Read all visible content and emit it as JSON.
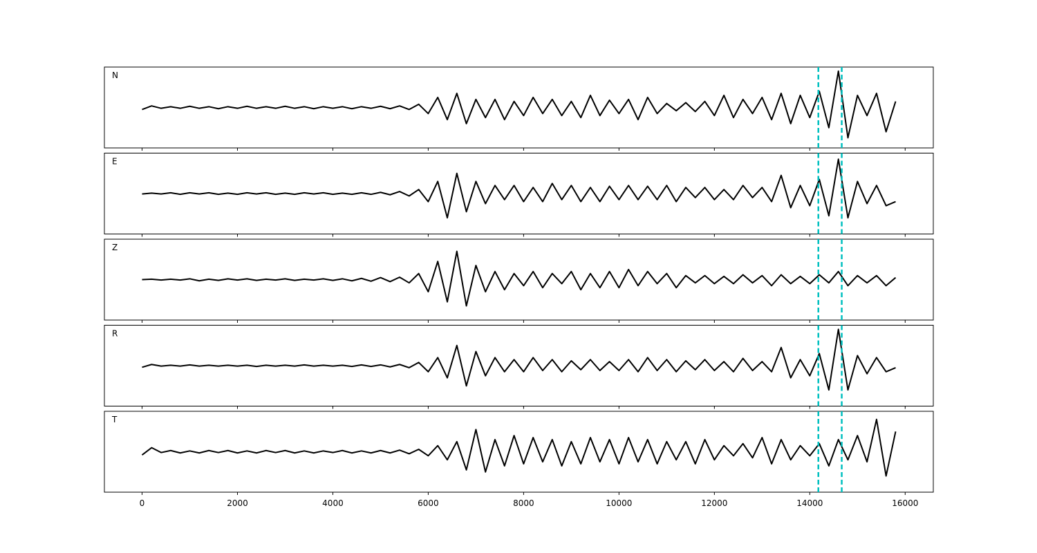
{
  "chart_data": {
    "type": "line",
    "layout": "stacked",
    "x": [
      0,
      200,
      400,
      600,
      800,
      1000,
      1200,
      1400,
      1600,
      1800,
      2000,
      2200,
      2400,
      2600,
      2800,
      3000,
      3200,
      3400,
      3600,
      3800,
      4000,
      4200,
      4400,
      4600,
      4800,
      5000,
      5200,
      5400,
      5600,
      5800,
      6000,
      6200,
      6400,
      6600,
      6800,
      7000,
      7200,
      7400,
      7600,
      7800,
      8000,
      8200,
      8400,
      8600,
      8800,
      9000,
      9200,
      9400,
      9600,
      9800,
      10000,
      10200,
      10400,
      10600,
      10800,
      11000,
      11200,
      11400,
      11600,
      11800,
      12000,
      12200,
      12400,
      12600,
      12800,
      13000,
      13200,
      13400,
      13600,
      13800,
      14000,
      14200,
      14400,
      14600,
      14800,
      15000,
      15200,
      15400,
      15600,
      15800
    ],
    "xlim": [
      -790,
      16590
    ],
    "xticks": [
      0,
      2000,
      4000,
      6000,
      8000,
      10000,
      12000,
      14000,
      16000
    ],
    "ylim": [
      -1,
      1
    ],
    "vlines": [
      14180,
      14670
    ],
    "vline_color": "#00bfbf",
    "series": [
      {
        "name": "N",
        "color": "#000000",
        "values": [
          -0.05,
          0.04,
          -0.02,
          0.02,
          -0.02,
          0.03,
          -0.02,
          0.02,
          -0.03,
          0.02,
          -0.02,
          0.03,
          -0.02,
          0.02,
          -0.02,
          0.03,
          -0.02,
          0.02,
          -0.03,
          0.02,
          -0.02,
          0.02,
          -0.03,
          0.02,
          -0.02,
          0.03,
          -0.03,
          0.04,
          -0.05,
          0.08,
          -0.15,
          0.25,
          -0.3,
          0.35,
          -0.4,
          0.2,
          -0.25,
          0.2,
          -0.3,
          0.15,
          -0.2,
          0.25,
          -0.15,
          0.2,
          -0.2,
          0.15,
          -0.25,
          0.3,
          -0.2,
          0.18,
          -0.15,
          0.2,
          -0.3,
          0.25,
          -0.15,
          0.1,
          -0.08,
          0.12,
          -0.1,
          0.15,
          -0.2,
          0.3,
          -0.25,
          0.2,
          -0.15,
          0.25,
          -0.3,
          0.35,
          -0.4,
          0.3,
          -0.25,
          0.4,
          -0.5,
          0.9,
          -0.75,
          0.3,
          -0.2,
          0.35,
          -0.6,
          0.15
        ]
      },
      {
        "name": "E",
        "color": "#000000",
        "values": [
          -0.01,
          0.01,
          -0.01,
          0.02,
          -0.02,
          0.02,
          -0.01,
          0.02,
          -0.02,
          0.01,
          -0.02,
          0.02,
          -0.01,
          0.02,
          -0.02,
          0.01,
          -0.02,
          0.02,
          -0.01,
          0.02,
          -0.02,
          0.01,
          -0.02,
          0.02,
          -0.02,
          0.03,
          -0.03,
          0.05,
          -0.06,
          0.1,
          -0.2,
          0.3,
          -0.6,
          0.5,
          -0.45,
          0.3,
          -0.25,
          0.2,
          -0.15,
          0.2,
          -0.2,
          0.15,
          -0.2,
          0.25,
          -0.15,
          0.2,
          -0.2,
          0.15,
          -0.2,
          0.18,
          -0.15,
          0.2,
          -0.15,
          0.18,
          -0.15,
          0.2,
          -0.2,
          0.15,
          -0.1,
          0.15,
          -0.15,
          0.1,
          -0.15,
          0.2,
          -0.1,
          0.15,
          -0.2,
          0.45,
          -0.35,
          0.2,
          -0.3,
          0.35,
          -0.55,
          0.85,
          -0.6,
          0.3,
          -0.25,
          0.2,
          -0.3,
          -0.2
        ]
      },
      {
        "name": "Z",
        "color": "#000000",
        "values": [
          0,
          0.01,
          -0.01,
          0.01,
          -0.01,
          0.02,
          -0.03,
          0.01,
          -0.02,
          0.02,
          -0.01,
          0.02,
          -0.02,
          0.01,
          -0.01,
          0.02,
          -0.02,
          0.01,
          -0.01,
          0.02,
          -0.02,
          0.02,
          -0.03,
          0.03,
          -0.04,
          0.05,
          -0.05,
          0.06,
          -0.08,
          0.15,
          -0.3,
          0.45,
          -0.55,
          0.7,
          -0.65,
          0.35,
          -0.3,
          0.2,
          -0.25,
          0.15,
          -0.15,
          0.2,
          -0.2,
          0.15,
          -0.1,
          0.2,
          -0.25,
          0.15,
          -0.2,
          0.2,
          -0.2,
          0.25,
          -0.15,
          0.2,
          -0.1,
          0.15,
          -0.2,
          0.1,
          -0.08,
          0.1,
          -0.1,
          0.08,
          -0.1,
          0.12,
          -0.08,
          0.1,
          -0.15,
          0.12,
          -0.1,
          0.08,
          -0.1,
          0.12,
          -0.08,
          0.2,
          -0.15,
          0.1,
          -0.08,
          0.1,
          -0.15,
          0.05
        ]
      },
      {
        "name": "R",
        "color": "#000000",
        "values": [
          -0.04,
          0.03,
          -0.01,
          0.01,
          -0.01,
          0.02,
          -0.01,
          0.01,
          -0.01,
          0.01,
          -0.01,
          0.01,
          -0.02,
          0.01,
          -0.01,
          0.01,
          -0.01,
          0.02,
          -0.01,
          0.01,
          -0.01,
          0.01,
          -0.02,
          0.02,
          -0.02,
          0.02,
          -0.03,
          0.03,
          -0.05,
          0.08,
          -0.15,
          0.2,
          -0.3,
          0.5,
          -0.5,
          0.35,
          -0.25,
          0.2,
          -0.15,
          0.15,
          -0.15,
          0.2,
          -0.12,
          0.15,
          -0.15,
          0.12,
          -0.1,
          0.15,
          -0.12,
          0.1,
          -0.12,
          0.15,
          -0.15,
          0.2,
          -0.12,
          0.15,
          -0.15,
          0.12,
          -0.1,
          0.15,
          -0.12,
          0.1,
          -0.15,
          0.18,
          -0.12,
          0.1,
          -0.15,
          0.45,
          -0.3,
          0.15,
          -0.25,
          0.3,
          -0.6,
          0.9,
          -0.6,
          0.25,
          -0.2,
          0.2,
          -0.15,
          -0.05
        ]
      },
      {
        "name": "T",
        "color": "#000000",
        "values": [
          -0.08,
          0.1,
          -0.02,
          0.03,
          -0.03,
          0.02,
          -0.03,
          0.03,
          -0.02,
          0.03,
          -0.03,
          0.02,
          -0.03,
          0.03,
          -0.02,
          0.03,
          -0.03,
          0.02,
          -0.03,
          0.02,
          -0.02,
          0.03,
          -0.03,
          0.02,
          -0.03,
          0.03,
          -0.03,
          0.04,
          -0.05,
          0.06,
          -0.1,
          0.15,
          -0.2,
          0.25,
          -0.45,
          0.55,
          -0.5,
          0.3,
          -0.35,
          0.4,
          -0.3,
          0.35,
          -0.25,
          0.3,
          -0.35,
          0.25,
          -0.3,
          0.35,
          -0.25,
          0.3,
          -0.3,
          0.35,
          -0.25,
          0.3,
          -0.3,
          0.25,
          -0.2,
          0.25,
          -0.3,
          0.3,
          -0.2,
          0.15,
          -0.1,
          0.2,
          -0.15,
          0.35,
          -0.3,
          0.3,
          -0.2,
          0.15,
          -0.1,
          0.2,
          -0.35,
          0.3,
          -0.2,
          0.4,
          -0.25,
          0.8,
          -0.6,
          0.5
        ]
      }
    ]
  }
}
